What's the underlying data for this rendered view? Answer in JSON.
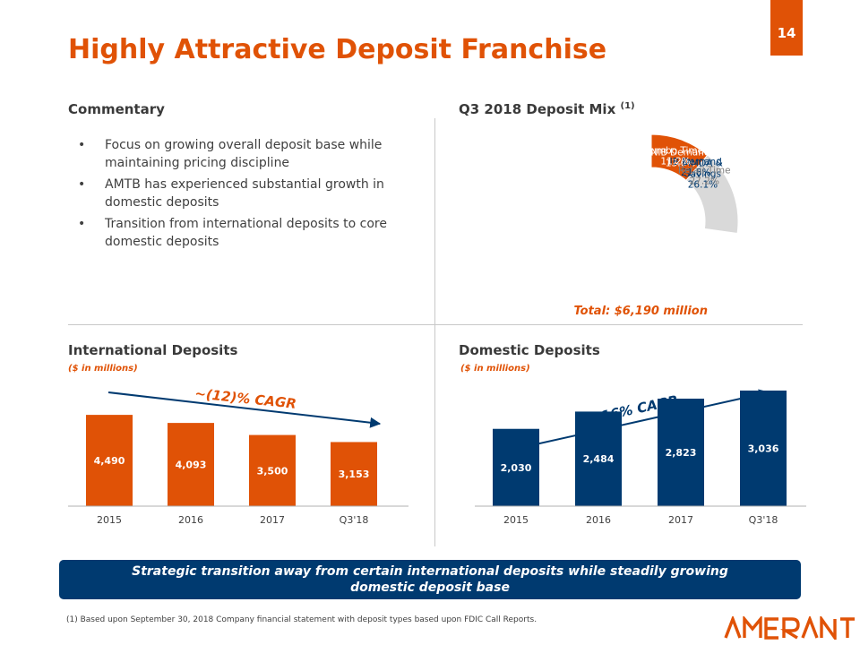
{
  "page_number": "14",
  "title": "Highly Attractive Deposit Franchise",
  "commentary": {
    "heading": "Commentary",
    "bullets": [
      "Focus on growing overall deposit base while maintaining pricing discipline",
      "AMTB has experienced substantial growth in domestic deposits",
      "Transition from international deposits to core domestic deposits"
    ]
  },
  "deposit_mix": {
    "heading": "Q3 2018 Deposit Mix",
    "footnote_ref": "(1)",
    "total": "Total: $6,190 million"
  },
  "international": {
    "heading": "International Deposits",
    "unit": "($ in millions)",
    "cagr": "~(12)% CAGR"
  },
  "domestic": {
    "heading": "Domestic Deposits",
    "unit": "($ in millions)",
    "cagr": "~16% CAGR"
  },
  "banner": "Strategic transition away from certain international deposits while steadily growing domestic deposit base",
  "footnote": "(1) Based upon September 30, 2018 Company financial statement with deposit types based upon FDIC Call Reports.",
  "logo_text": "AMERANT",
  "colors": {
    "orange": "#e05206",
    "navy": "#003a70",
    "light_blue": "#7cc6d6",
    "gold": "#f2a900",
    "grey": "#d9d9d9"
  },
  "chart_data": [
    {
      "type": "pie",
      "labels": [
        "NIB Demand",
        "IB Demand",
        "MMDA & Savings",
        "Retail Time",
        "Jumbo Time"
      ],
      "label_lines": [
        [
          "NIB Demand"
        ],
        [
          "IB Demand"
        ],
        [
          "MMDA &",
          "Savings"
        ],
        [
          "Retail Time"
        ],
        [
          "Jumbo Time"
        ]
      ],
      "values": [
        13.6,
        21.8,
        26.1,
        27.2,
        11.2
      ],
      "value_labels": [
        "13.6%",
        "21.8%",
        "26.1%",
        "27.2%",
        "11.2%"
      ],
      "colors": [
        "#003a70",
        "#7cc6d6",
        "#f2a900",
        "#d9d9d9",
        "#e05206"
      ],
      "label_colors": [
        "#ffffff",
        "#003a70",
        "#003a70",
        "#808080",
        "#ffffff"
      ],
      "donut": true,
      "title": "Q3 2018 Deposit Mix"
    },
    {
      "type": "bar",
      "title": "International Deposits",
      "categories": [
        "2015",
        "2016",
        "2017",
        "Q3'18"
      ],
      "values": [
        4490,
        4093,
        3500,
        3153
      ],
      "value_labels": [
        "4,490",
        "4,093",
        "3,500",
        "3,153"
      ],
      "color": "#e05206",
      "ylim": [
        0,
        5200
      ]
    },
    {
      "type": "bar",
      "title": "Domestic Deposits",
      "categories": [
        "2015",
        "2016",
        "2017",
        "Q3'18"
      ],
      "values": [
        2030,
        2484,
        2823,
        3036
      ],
      "value_labels": [
        "2,030",
        "2,484",
        "2,823",
        "3,036"
      ],
      "color": "#003a70",
      "ylim": [
        0,
        4000
      ]
    }
  ]
}
